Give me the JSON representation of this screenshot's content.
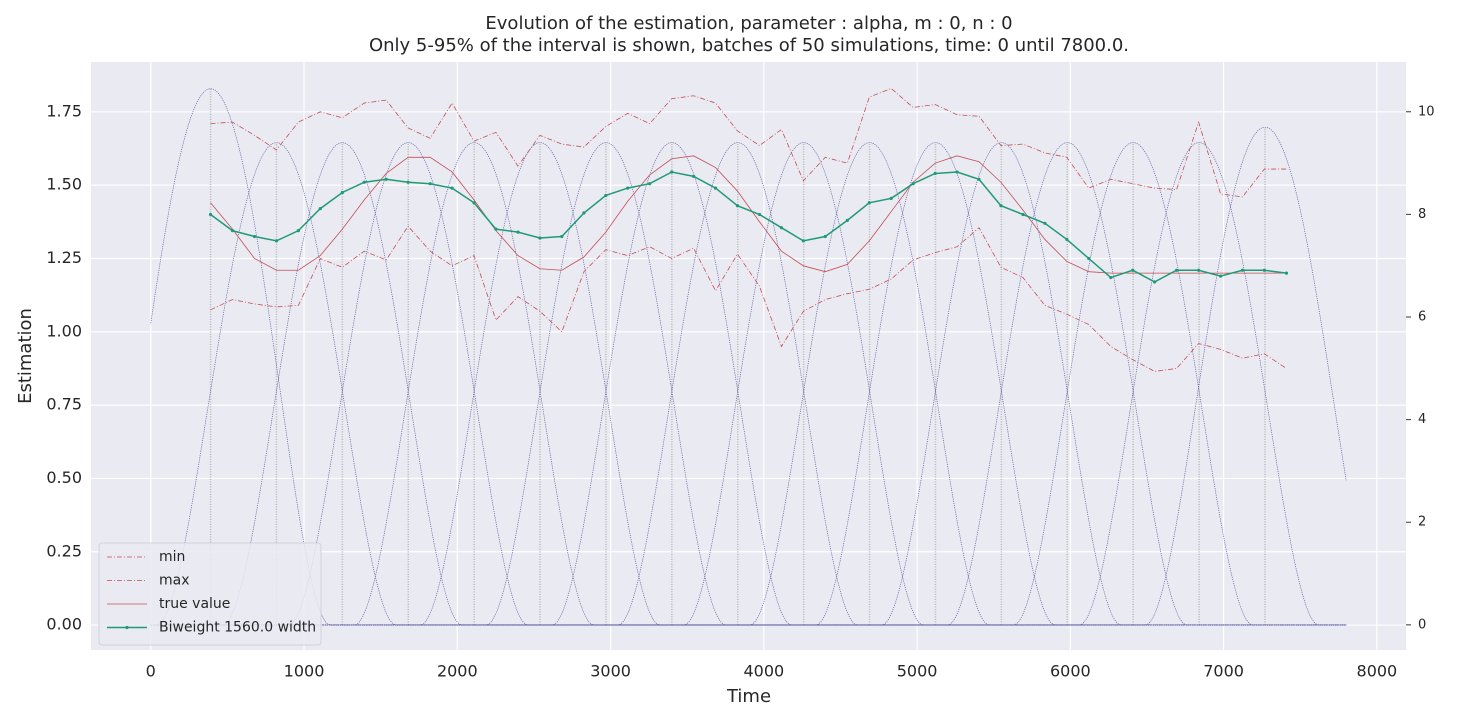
{
  "chart_data": {
    "type": "line",
    "title": "Evolution of the estimation, parameter : alpha, m : 0, n : 0",
    "subtitle": "Only 5-95% of the interval is shown, batches of 50 simulations, time: 0 until 7800.0.",
    "x_label": "Time",
    "y_label": "Estimation",
    "x": [
      390,
      533,
      677,
      820,
      963,
      1106,
      1250,
      1393,
      1536,
      1679,
      1823,
      1966,
      2109,
      2252,
      2396,
      2539,
      2682,
      2826,
      2969,
      3112,
      3255,
      3399,
      3542,
      3685,
      3828,
      3972,
      4115,
      4258,
      4401,
      4545,
      4688,
      4831,
      4974,
      5118,
      5261,
      5404,
      5547,
      5691,
      5834,
      5977,
      6120,
      6264,
      6407,
      6550,
      6693,
      6837,
      6980,
      7123,
      7266,
      7410
    ],
    "series": [
      {
        "name": "min",
        "color": "#c44e52",
        "linestyle": "dashdot",
        "values": [
          1.075,
          1.11,
          1.095,
          1.085,
          1.09,
          1.25,
          1.22,
          1.275,
          1.245,
          1.36,
          1.275,
          1.225,
          1.26,
          1.04,
          1.12,
          1.07,
          1.0,
          1.205,
          1.28,
          1.26,
          1.29,
          1.25,
          1.285,
          1.14,
          1.265,
          1.155,
          0.95,
          1.07,
          1.11,
          1.13,
          1.145,
          1.18,
          1.245,
          1.27,
          1.29,
          1.355,
          1.22,
          1.185,
          1.09,
          1.06,
          1.025,
          0.95,
          0.905,
          0.865,
          0.875,
          0.96,
          0.94,
          0.91,
          0.925,
          0.875
        ]
      },
      {
        "name": "max",
        "color": "#c44e52",
        "linestyle": "dashdot",
        "values": [
          1.71,
          1.715,
          1.67,
          1.62,
          1.715,
          1.75,
          1.73,
          1.78,
          1.79,
          1.695,
          1.66,
          1.78,
          1.65,
          1.68,
          1.565,
          1.67,
          1.64,
          1.63,
          1.7,
          1.745,
          1.71,
          1.795,
          1.805,
          1.78,
          1.685,
          1.635,
          1.69,
          1.515,
          1.595,
          1.575,
          1.8,
          1.83,
          1.765,
          1.775,
          1.74,
          1.735,
          1.635,
          1.64,
          1.61,
          1.595,
          1.49,
          1.52,
          1.505,
          1.49,
          1.485,
          1.715,
          1.47,
          1.46,
          1.555,
          1.555
        ]
      },
      {
        "name": "true value",
        "color": "#c44e52",
        "linestyle": "solid",
        "values": [
          1.44,
          1.35,
          1.25,
          1.21,
          1.21,
          1.26,
          1.35,
          1.45,
          1.54,
          1.595,
          1.595,
          1.545,
          1.45,
          1.345,
          1.26,
          1.215,
          1.21,
          1.255,
          1.34,
          1.445,
          1.535,
          1.59,
          1.6,
          1.56,
          1.48,
          1.375,
          1.275,
          1.225,
          1.205,
          1.23,
          1.31,
          1.41,
          1.51,
          1.575,
          1.6,
          1.58,
          1.51,
          1.415,
          1.315,
          1.24,
          1.205,
          1.2,
          1.2,
          1.2,
          1.2,
          1.2,
          1.2,
          1.2,
          1.2,
          1.2
        ]
      },
      {
        "name": "Biweight 1560.0 width",
        "color": "#1f9a76",
        "linestyle": "solid",
        "marker": "dot",
        "values": [
          1.4,
          1.345,
          1.325,
          1.31,
          1.345,
          1.42,
          1.475,
          1.51,
          1.52,
          1.51,
          1.505,
          1.49,
          1.44,
          1.35,
          1.34,
          1.32,
          1.325,
          1.405,
          1.465,
          1.49,
          1.505,
          1.545,
          1.53,
          1.49,
          1.43,
          1.4,
          1.355,
          1.31,
          1.325,
          1.38,
          1.44,
          1.455,
          1.505,
          1.54,
          1.545,
          1.52,
          1.43,
          1.4,
          1.37,
          1.315,
          1.25,
          1.185,
          1.21,
          1.17,
          1.21,
          1.21,
          1.19,
          1.21,
          1.21,
          1.2
        ]
      }
    ],
    "kernels": {
      "color": "#4b4b96",
      "axis": "y2",
      "width": 1560,
      "time_range": [
        0,
        7800
      ],
      "x": [
        390,
        820,
        1250,
        1680,
        2110,
        2540,
        2970,
        3400,
        3830,
        4260,
        4690,
        5120,
        5550,
        5980,
        6410,
        6840,
        7270
      ],
      "values": [
        10.45,
        9.4,
        9.4,
        9.4,
        9.4,
        9.4,
        9.4,
        9.4,
        9.4,
        9.4,
        9.4,
        9.4,
        9.4,
        9.4,
        9.4,
        9.4,
        9.7
      ]
    },
    "xlim": [
      -390,
      8190
    ],
    "xticks": [
      0,
      1000,
      2000,
      3000,
      4000,
      5000,
      6000,
      7000,
      8000
    ],
    "ylim": [
      -0.085,
      1.92
    ],
    "yticks": [
      {
        "value": 0,
        "label": "0.00"
      },
      0.25,
      {
        "value": 0.5,
        "label": "0.50"
      },
      0.75,
      {
        "value": 1,
        "label": "1.00"
      },
      1.25,
      {
        "value": 1.5,
        "label": "1.50"
      },
      1.75
    ],
    "y2lim": [
      -0.49,
      10.97
    ],
    "y2ticks": [
      0,
      2,
      4,
      6,
      8,
      10
    ],
    "grid": true,
    "legend": "lower left"
  }
}
